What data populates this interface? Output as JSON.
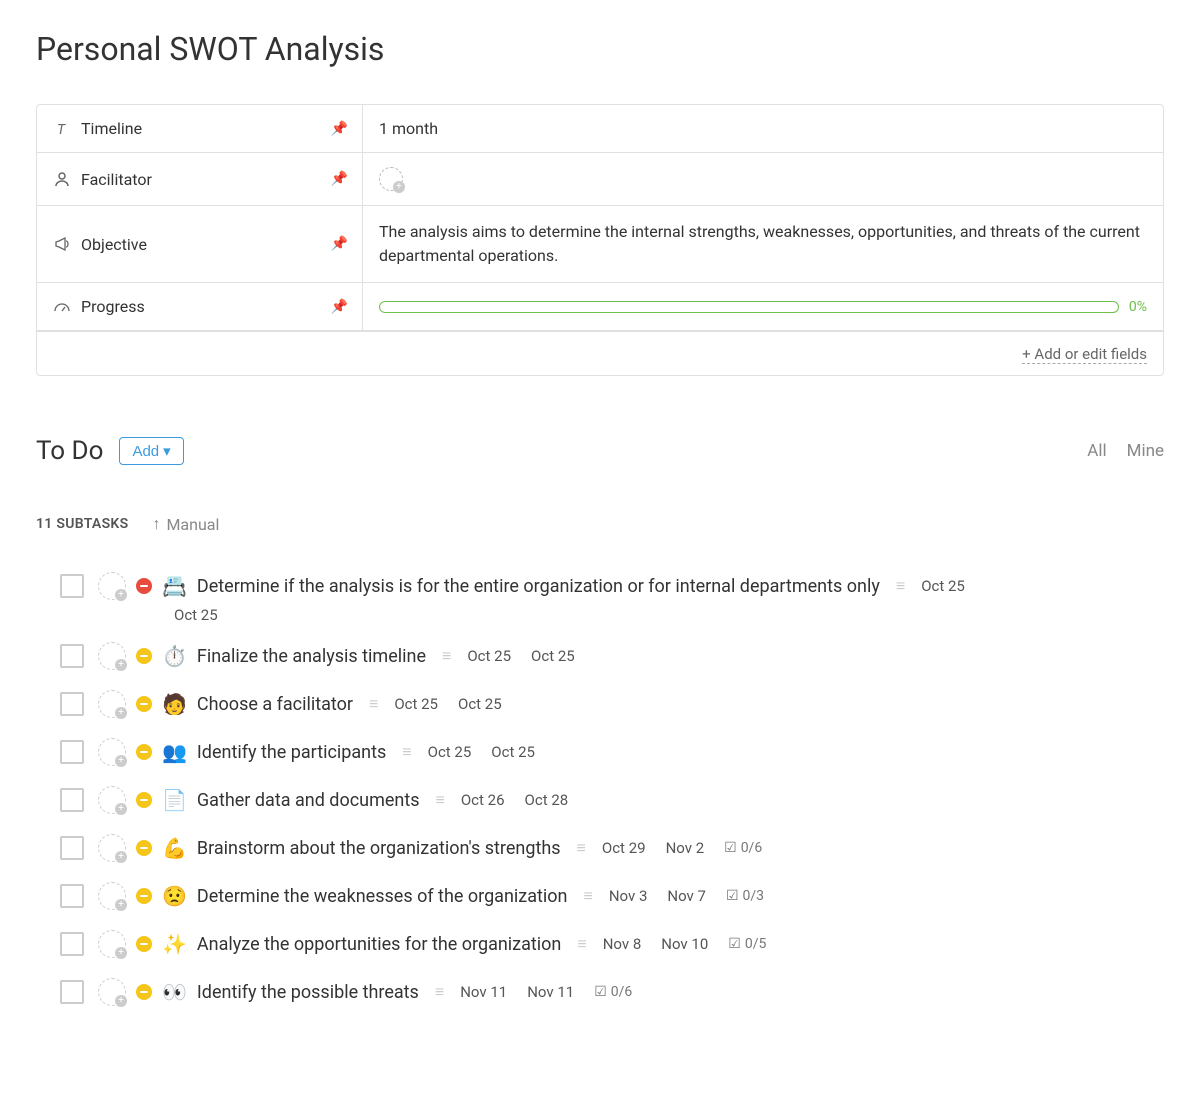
{
  "page": {
    "title": "Personal SWOT Analysis"
  },
  "fields": {
    "timeline": {
      "label": "Timeline",
      "value": "1 month"
    },
    "facilitator": {
      "label": "Facilitator"
    },
    "objective": {
      "label": "Objective",
      "value": "The analysis aims to determine the internal strengths, weaknesses, opportunities, and threats of the current departmental operations."
    },
    "progress": {
      "label": "Progress",
      "percent_label": "0%",
      "percent": 0
    }
  },
  "add_fields_label": "+ Add or edit fields",
  "todo": {
    "title": "To Do",
    "add_label": "Add",
    "filters": {
      "all": "All",
      "mine": "Mine"
    },
    "subtask_count_label": "11 SUBTASKS",
    "sort_label": "Manual"
  },
  "colors": {
    "pin": "#3b9be0",
    "progress_border": "#6fbf4a",
    "priority_red": "#e74c3c",
    "priority_yellow": "#f5c518"
  },
  "tasks": [
    {
      "priority": "red",
      "emoji": "📇",
      "title": "Determine if the analysis is for the entire organization or for internal departments only",
      "date1": "Oct 25",
      "date2": "Oct 25",
      "wrap": true
    },
    {
      "priority": "yellow",
      "emoji": "⏱️",
      "title": "Finalize the analysis timeline",
      "date1": "Oct 25",
      "date2": "Oct 25"
    },
    {
      "priority": "yellow",
      "emoji": "🧑",
      "title": "Choose a facilitator",
      "date1": "Oct 25",
      "date2": "Oct 25"
    },
    {
      "priority": "yellow",
      "emoji": "👥",
      "title": "Identify the participants",
      "date1": "Oct 25",
      "date2": "Oct 25"
    },
    {
      "priority": "yellow",
      "emoji": "📄",
      "title": "Gather data and documents",
      "date1": "Oct 26",
      "date2": "Oct 28"
    },
    {
      "priority": "yellow",
      "emoji": "💪",
      "title": "Brainstorm about the organization's strengths",
      "date1": "Oct 29",
      "date2": "Nov 2",
      "subtask_badge": "0/6"
    },
    {
      "priority": "yellow",
      "emoji": "😟",
      "title": "Determine the weaknesses of the organization",
      "date1": "Nov 3",
      "date2": "Nov 7",
      "subtask_badge": "0/3"
    },
    {
      "priority": "yellow",
      "emoji": "✨",
      "title": "Analyze the opportunities for the organization",
      "date1": "Nov 8",
      "date2": "Nov 10",
      "subtask_badge": "0/5"
    },
    {
      "priority": "yellow",
      "emoji": "👀",
      "title": "Identify the possible threats",
      "date1": "Nov 11",
      "date2": "Nov 11",
      "subtask_badge": "0/6"
    }
  ]
}
